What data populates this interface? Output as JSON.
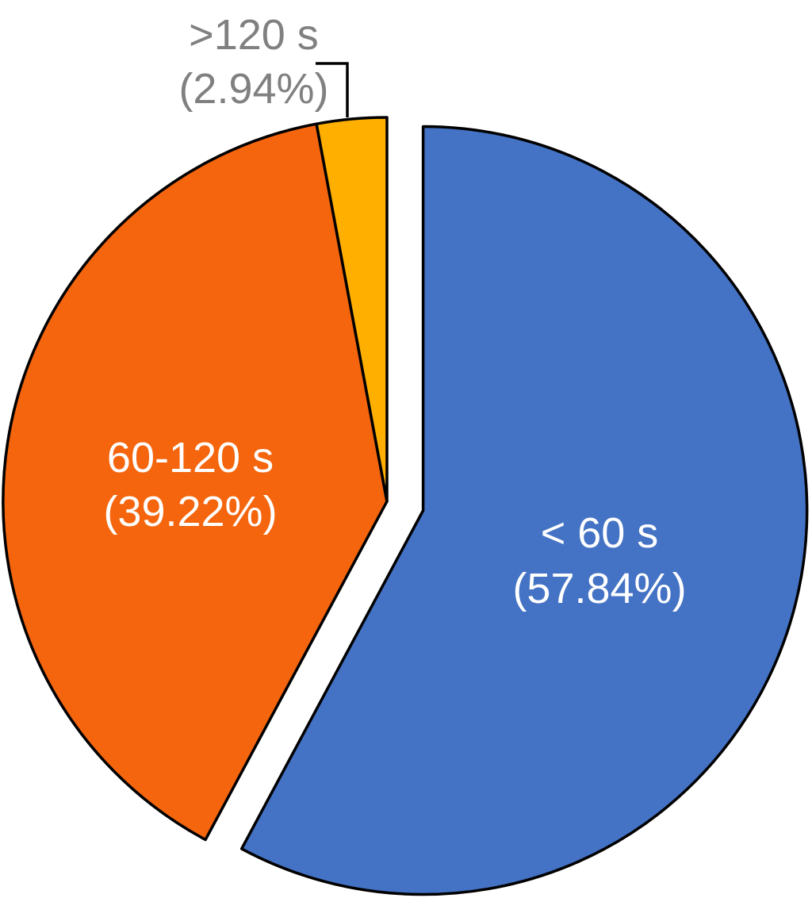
{
  "page": {
    "background_color": "#FFFFFF"
  },
  "chart_data": {
    "type": "pie",
    "title": "",
    "legend": "none",
    "background": "#FFFFFF",
    "outline_color": "#000000",
    "direction": "clockwise",
    "start_angle_deg": 0,
    "categories": [
      "< 60 s",
      "60-120 s",
      ">120 s"
    ],
    "values": [
      57.84,
      39.22,
      2.94
    ],
    "slices": [
      {
        "key": "under-60s",
        "label": "< 60 s",
        "value_pct": 57.84,
        "display_lines": [
          "< 60 s",
          "(57.84%)"
        ],
        "color": "#4472C4",
        "label_color": "#FFFFFF",
        "label_position": "inside",
        "exploded": true
      },
      {
        "key": "60-120s",
        "label": "60-120 s",
        "value_pct": 39.22,
        "display_lines": [
          "60-120 s",
          "(39.22%)"
        ],
        "color": "#F4650D",
        "label_color": "#FFFFFF",
        "label_position": "inside",
        "exploded": false
      },
      {
        "key": "over-120s",
        "label": ">120 s",
        "value_pct": 2.94,
        "display_lines": [
          ">120 s",
          "(2.94%)"
        ],
        "color": "#FFAF00",
        "label_color": "#808080",
        "label_position": "outside-callout",
        "exploded": false
      }
    ]
  }
}
